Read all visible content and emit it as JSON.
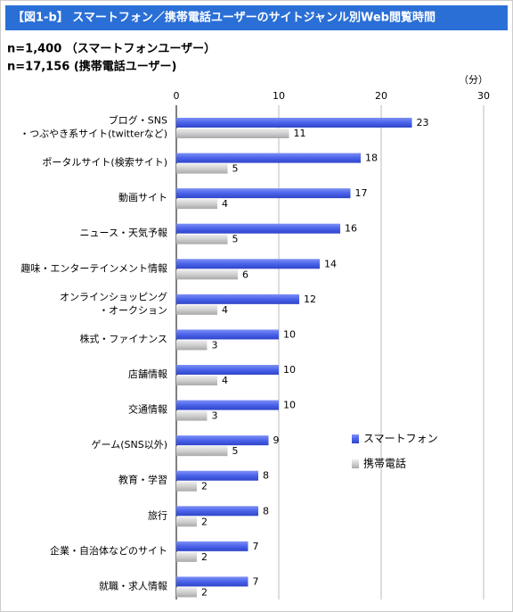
{
  "chart_data": {
    "type": "hbar",
    "title": "【図1-b】 スマートフォン／携帯電話ユーザーのサイトジャンル別Web閲覧時間",
    "subtitle": [
      "n=1,400 （スマートフォンユーザー）",
      "n=17,156 (携帯電話ユーザー)"
    ],
    "x_label": "（分）",
    "xlim": [
      0,
      30
    ],
    "xticks": [
      0,
      10,
      20,
      30
    ],
    "grid": true,
    "legend": "right",
    "categories": [
      [
        "ブログ・SNS",
        "・つぶやき系サイト(twitterなど)"
      ],
      [
        "ポータルサイト(検索サイト)"
      ],
      [
        "動画サイト"
      ],
      [
        "ニュース・天気予報"
      ],
      [
        "趣味・エンターテインメント情報"
      ],
      [
        "オンラインショッピング",
        "・オークション"
      ],
      [
        "株式・ファイナンス"
      ],
      [
        "店舗情報"
      ],
      [
        "交通情報"
      ],
      [
        "ゲーム(SNS以外)"
      ],
      [
        "教育・学習"
      ],
      [
        "旅行"
      ],
      [
        "企業・自治体などのサイト"
      ],
      [
        "就職・求人情報"
      ]
    ],
    "series": [
      {
        "name": "スマートフォン",
        "color": "#4a63ea",
        "values": [
          23,
          18,
          17,
          16,
          14,
          12,
          10,
          10,
          10,
          9,
          8,
          8,
          7,
          7
        ]
      },
      {
        "name": "携帯電話",
        "color": "#cfcfcf",
        "values": [
          11,
          5,
          4,
          5,
          6,
          4,
          3,
          4,
          3,
          5,
          2,
          2,
          2,
          2
        ]
      }
    ]
  }
}
